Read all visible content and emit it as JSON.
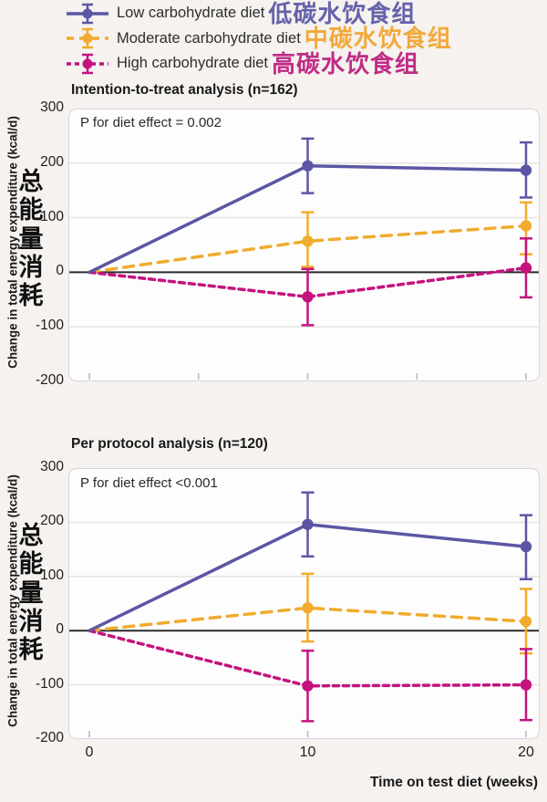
{
  "colors": {
    "background": "#f5f2ef",
    "panel_fill": "#fefdfd",
    "panel_border": "#d8d4de",
    "gridline": "#e8e5e2",
    "zero_line": "#2b2b2b",
    "low": "#5b57a4",
    "moderate": "#f0ac2e",
    "high": "#c4137f",
    "cjk_low": "#6562ab",
    "cjk_moderate": "#f2a93c",
    "cjk_high": "#c02c86"
  },
  "legend": {
    "items": [
      {
        "label": "Low carbohydrate diet",
        "label_cjk": "低碳水饮食组",
        "color": "#5b57a4",
        "cjk_color": "#6562ab",
        "style": "solid"
      },
      {
        "label": "Moderate carbohydrate diet",
        "label_cjk": "中碳水饮食组",
        "color": "#f0ac2e",
        "cjk_color": "#f2a93c",
        "style": "dashed"
      },
      {
        "label": "High carbohydrate diet",
        "label_cjk": "高碳水饮食组",
        "color": "#c4137f",
        "cjk_color": "#c02c86",
        "style": "dotted"
      }
    ]
  },
  "axes": {
    "y_label": "Change in total energy expenditure (kcal/d)",
    "y_label_cjk": "总能量消耗",
    "x_label": "Time on test diet (weeks)",
    "y_ticks": [
      300,
      200,
      100,
      0,
      -100,
      -200
    ],
    "x_ticks": [
      0,
      10,
      20
    ]
  },
  "chart_data": [
    {
      "type": "line",
      "title": "Intention-to-treat analysis (n=162)",
      "annotation": "P for diet effect = 0.002",
      "x": [
        0,
        10,
        20
      ],
      "xlabel": "Time on test diet (weeks)",
      "ylabel": "Change in total energy expenditure (kcal/d)",
      "ylim": [
        -200,
        300
      ],
      "xlim_ticks": [
        0,
        10,
        20
      ],
      "x_ticks_inner": [
        0,
        5,
        10,
        15,
        20
      ],
      "grid_y": [
        200,
        100,
        -100
      ],
      "series": [
        {
          "name": "Low carbohydrate diet",
          "color": "#5b57a4",
          "style": "solid",
          "values": [
            0,
            195,
            187
          ],
          "err_lo": [
            null,
            145,
            137
          ],
          "err_hi": [
            null,
            245,
            238
          ]
        },
        {
          "name": "Moderate carbohydrate diet",
          "color": "#f0ac2e",
          "style": "dashed",
          "values": [
            0,
            57,
            85
          ],
          "err_lo": [
            null,
            10,
            33
          ],
          "err_hi": [
            null,
            110,
            128
          ]
        },
        {
          "name": "High carbohydrate diet",
          "color": "#c4137f",
          "style": "dotted",
          "values": [
            0,
            -45,
            8
          ],
          "err_lo": [
            null,
            -97,
            -46
          ],
          "err_hi": [
            null,
            6,
            62
          ]
        }
      ]
    },
    {
      "type": "line",
      "title": "Per protocol analysis (n=120)",
      "annotation": "P for diet effect <0.001",
      "x": [
        0,
        10,
        20
      ],
      "xlabel": "Time on test diet (weeks)",
      "ylabel": "Change in total energy expenditure (kcal/d)",
      "ylim": [
        -200,
        300
      ],
      "xlim_ticks": [
        0,
        10,
        20
      ],
      "x_ticks_inner": [
        0,
        10,
        20
      ],
      "grid_y": [
        200,
        100,
        -100
      ],
      "series": [
        {
          "name": "Low carbohydrate diet",
          "color": "#5b57a4",
          "style": "solid",
          "values": [
            0,
            196,
            155
          ],
          "err_lo": [
            null,
            137,
            95
          ],
          "err_hi": [
            null,
            255,
            213
          ]
        },
        {
          "name": "Moderate carbohydrate diet",
          "color": "#f0ac2e",
          "style": "dashed",
          "values": [
            0,
            42,
            17
          ],
          "err_lo": [
            null,
            -20,
            -42
          ],
          "err_hi": [
            null,
            105,
            77
          ]
        },
        {
          "name": "High carbohydrate diet",
          "color": "#c4137f",
          "style": "dotted",
          "values": [
            0,
            -102,
            -100
          ],
          "err_lo": [
            null,
            -167,
            -165
          ],
          "err_hi": [
            null,
            -37,
            -34
          ]
        }
      ]
    }
  ]
}
